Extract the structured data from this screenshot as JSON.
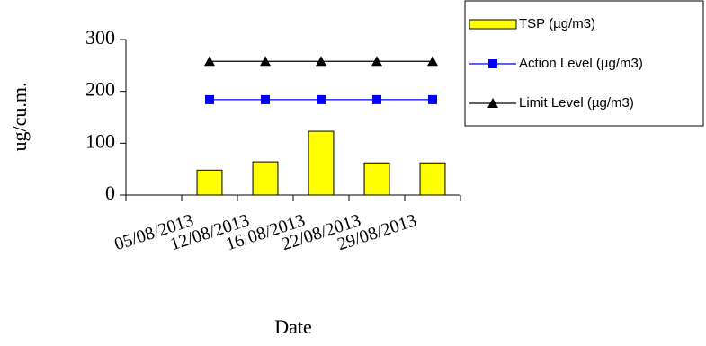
{
  "chart_data": {
    "type": "bar",
    "y_label": "ug/cu.m.",
    "x_label": "Date",
    "categories": [
      null,
      "05/08/2013",
      "12/08/2013",
      "16/08/2013",
      "22/08/2013",
      "29/08/2013"
    ],
    "series": [
      {
        "name": "TSP (µg/m3)",
        "type": "bar",
        "color": "#ffff00",
        "values": [
          null,
          48,
          64,
          123,
          62,
          62
        ]
      },
      {
        "name": "Action Level (µg/m3)",
        "type": "line",
        "marker": "square",
        "color": "#0000ff",
        "values": [
          null,
          184,
          184,
          184,
          184,
          184
        ]
      },
      {
        "name": "Limit Level (µg/m3)",
        "type": "line",
        "marker": "triangle",
        "color": "#000000",
        "values": [
          null,
          258,
          258,
          258,
          258,
          258
        ]
      }
    ],
    "ylim": [
      0,
      300
    ],
    "yticks": [
      0,
      100,
      200,
      300
    ],
    "legend": "upper right"
  }
}
